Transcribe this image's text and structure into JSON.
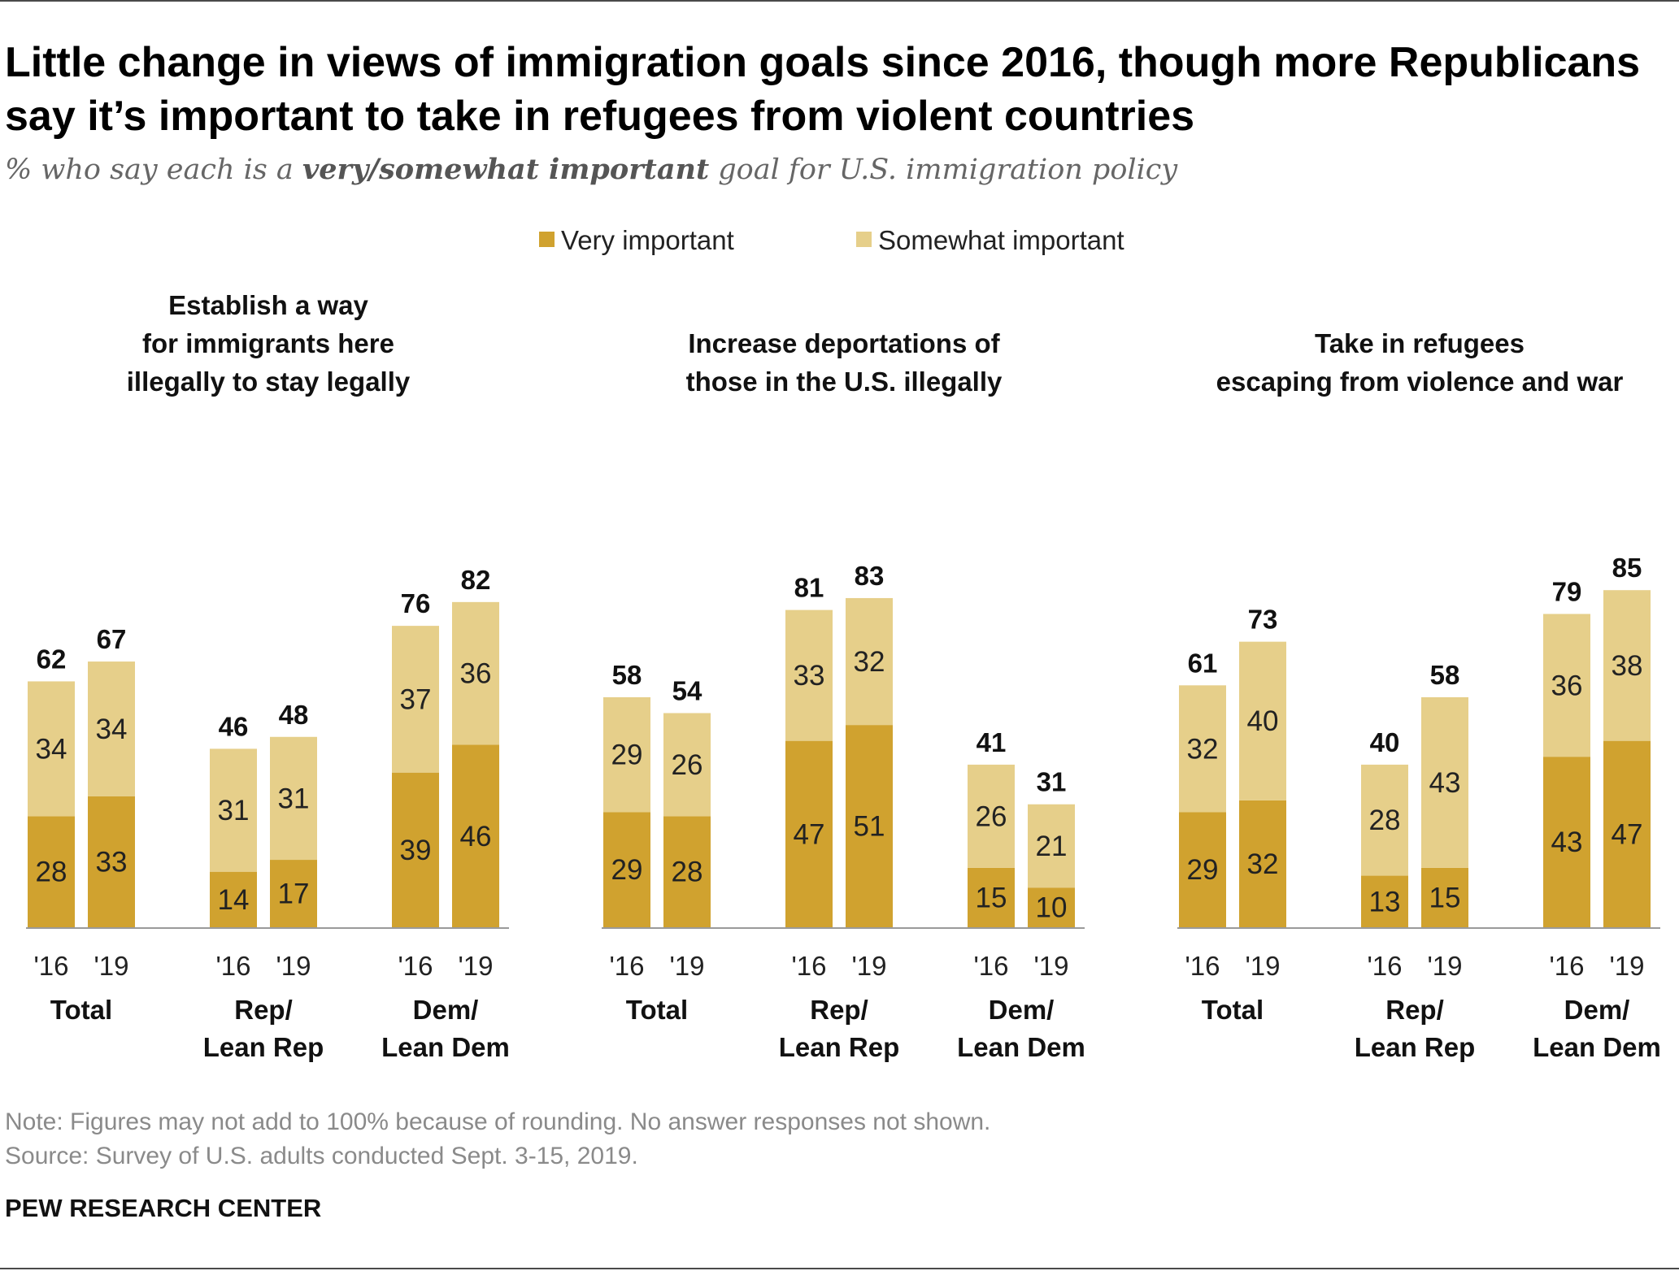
{
  "title": "Little change in views of immigration goals since 2016, though more Republicans say it’s important to take in refugees from violent countries",
  "subtitle": {
    "prefix": "% who say each is a ",
    "emphasis": "very/somewhat important",
    "suffix": " goal for U.S. immigration policy"
  },
  "legend": [
    {
      "label": "Very important",
      "color": "#d0a22f"
    },
    {
      "label": "Somewhat important",
      "color": "#e6cf8a"
    }
  ],
  "chart_data": {
    "type": "bar",
    "stacked": true,
    "series_names": [
      "Very important",
      "Somewhat important"
    ],
    "colors": {
      "very": "#d0a22f",
      "somewhat": "#e6cf8a"
    },
    "ylim": [
      0,
      100
    ],
    "grid": false,
    "legend_position": "top",
    "panels": [
      {
        "title": [
          "Establish a way",
          "for immigrants here",
          "illegally to stay legally"
        ],
        "groups": [
          {
            "label": [
              "Total"
            ],
            "bars": [
              {
                "year": "'16",
                "very": 28,
                "somewhat": 34,
                "total": 62
              },
              {
                "year": "'19",
                "very": 33,
                "somewhat": 34,
                "total": 67
              }
            ]
          },
          {
            "label": [
              "Rep/",
              "Lean Rep"
            ],
            "bars": [
              {
                "year": "'16",
                "very": 14,
                "somewhat": 31,
                "total": 46
              },
              {
                "year": "'19",
                "very": 17,
                "somewhat": 31,
                "total": 48
              }
            ]
          },
          {
            "label": [
              "Dem/",
              "Lean Dem"
            ],
            "bars": [
              {
                "year": "'16",
                "very": 39,
                "somewhat": 37,
                "total": 76
              },
              {
                "year": "'19",
                "very": 46,
                "somewhat": 36,
                "total": 82
              }
            ]
          }
        ]
      },
      {
        "title": [
          "Increase deportations of",
          "those in the U.S. illegally"
        ],
        "groups": [
          {
            "label": [
              "Total"
            ],
            "bars": [
              {
                "year": "'16",
                "very": 29,
                "somewhat": 29,
                "total": 58
              },
              {
                "year": "'19",
                "very": 28,
                "somewhat": 26,
                "total": 54
              }
            ]
          },
          {
            "label": [
              "Rep/",
              "Lean Rep"
            ],
            "bars": [
              {
                "year": "'16",
                "very": 47,
                "somewhat": 33,
                "total": 81
              },
              {
                "year": "'19",
                "very": 51,
                "somewhat": 32,
                "total": 83
              }
            ]
          },
          {
            "label": [
              "Dem/",
              "Lean Dem"
            ],
            "bars": [
              {
                "year": "'16",
                "very": 15,
                "somewhat": 26,
                "total": 41
              },
              {
                "year": "'19",
                "very": 10,
                "somewhat": 21,
                "total": 31
              }
            ]
          }
        ]
      },
      {
        "title": [
          "Take in refugees",
          "escaping from violence and war"
        ],
        "groups": [
          {
            "label": [
              "Total"
            ],
            "bars": [
              {
                "year": "'16",
                "very": 29,
                "somewhat": 32,
                "total": 61
              },
              {
                "year": "'19",
                "very": 32,
                "somewhat": 40,
                "total": 73
              }
            ]
          },
          {
            "label": [
              "Rep/",
              "Lean Rep"
            ],
            "bars": [
              {
                "year": "'16",
                "very": 13,
                "somewhat": 28,
                "total": 40
              },
              {
                "year": "'19",
                "very": 15,
                "somewhat": 43,
                "total": 58
              }
            ]
          },
          {
            "label": [
              "Dem/",
              "Lean Dem"
            ],
            "bars": [
              {
                "year": "'16",
                "very": 43,
                "somewhat": 36,
                "total": 79
              },
              {
                "year": "'19",
                "very": 47,
                "somewhat": 38,
                "total": 85
              }
            ]
          }
        ]
      }
    ]
  },
  "notes": {
    "note": "Note: Figures may not add to 100% because of rounding. No answer responses not shown.",
    "source": "Source: Survey of U.S. adults conducted Sept. 3-15, 2019."
  },
  "org": "PEW RESEARCH CENTER"
}
